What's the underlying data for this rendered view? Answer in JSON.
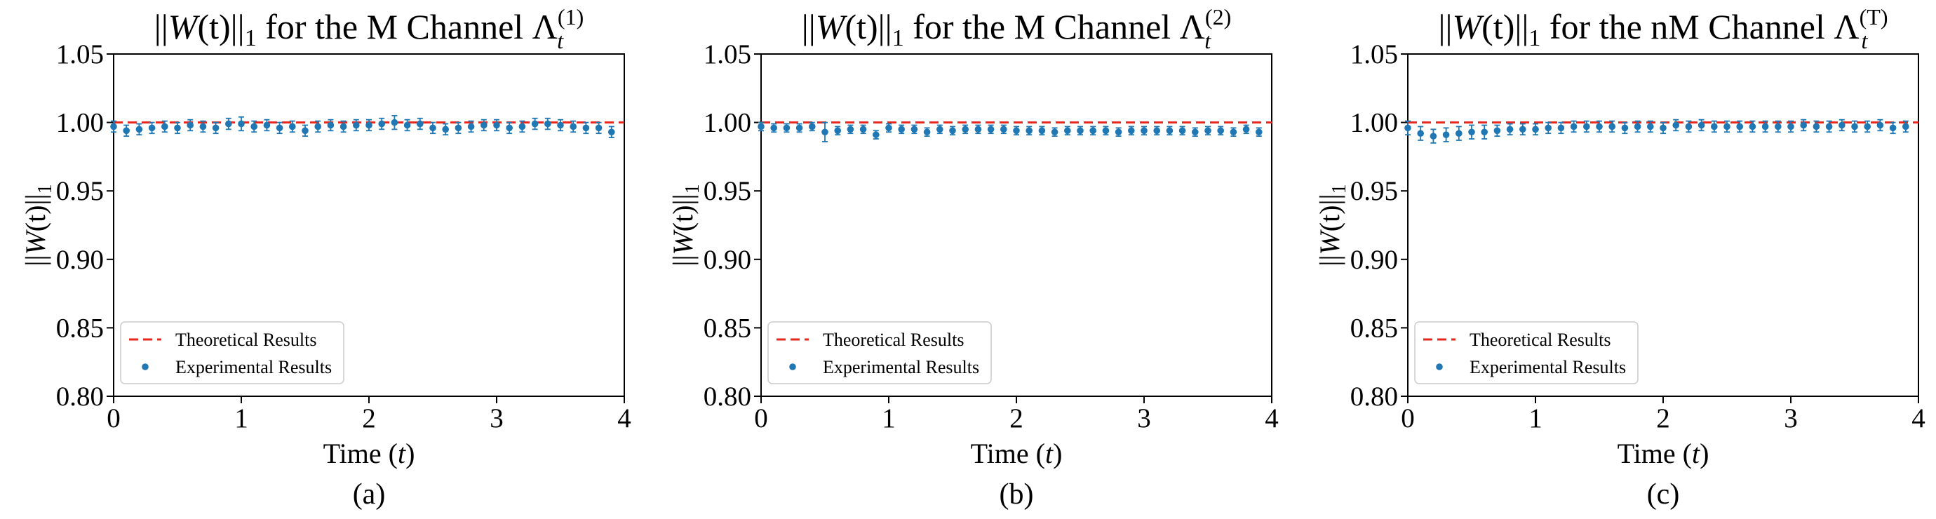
{
  "colors": {
    "theory": "#e8261c",
    "experiment": "#1f77b4",
    "axis": "#000000",
    "legend_border": "#cccccc"
  },
  "common": {
    "xlabel_prefix": "Time (",
    "xlabel_var": "t",
    "xlabel_suffix": ")",
    "ylabel_norm": "||",
    "ylabel_var": "W",
    "ylabel_mid": "(t)||",
    "ylabel_sub": "1",
    "legend_theory": "Theoretical Results",
    "legend_experiment": "Experimental Results",
    "title_norm_left": "||",
    "title_W": "W",
    "title_t": "(t)",
    "title_norm_right": "||",
    "title_norm_sub": "1",
    "title_lambda": "Λ",
    "title_lambda_sub": "t"
  },
  "chart_data": [
    {
      "type": "scatter",
      "subtitle": "(a)",
      "title_text": " for the M Channel ",
      "title_sup": "(1)",
      "xlim": [
        0,
        4
      ],
      "ylim": [
        0.8,
        1.05
      ],
      "xticks": [
        "0",
        "1",
        "2",
        "3",
        "4"
      ],
      "yticks": [
        "0.80",
        "0.85",
        "0.90",
        "0.95",
        "1.00",
        "1.05"
      ],
      "legend_position": "lower-left",
      "grid": false,
      "theory": {
        "name": "Theoretical Results",
        "y": 1.0
      },
      "x": [
        0.0,
        0.1,
        0.2,
        0.3,
        0.4,
        0.5,
        0.6,
        0.7,
        0.8,
        0.9,
        1.0,
        1.1,
        1.2,
        1.3,
        1.4,
        1.5,
        1.6,
        1.7,
        1.8,
        1.9,
        2.0,
        2.1,
        2.2,
        2.3,
        2.4,
        2.5,
        2.6,
        2.7,
        2.8,
        2.9,
        3.0,
        3.1,
        3.2,
        3.3,
        3.4,
        3.5,
        3.6,
        3.7,
        3.8,
        3.9
      ],
      "y": [
        0.997,
        0.994,
        0.995,
        0.996,
        0.997,
        0.996,
        0.998,
        0.997,
        0.996,
        0.999,
        0.999,
        0.997,
        0.998,
        0.996,
        0.997,
        0.994,
        0.997,
        0.998,
        0.997,
        0.998,
        0.998,
        0.999,
        1.0,
        0.998,
        0.999,
        0.996,
        0.995,
        0.996,
        0.997,
        0.998,
        0.998,
        0.996,
        0.997,
        0.999,
        0.999,
        0.998,
        0.997,
        0.996,
        0.996,
        0.993
      ],
      "err": [
        0.004,
        0.004,
        0.004,
        0.004,
        0.004,
        0.004,
        0.004,
        0.004,
        0.004,
        0.004,
        0.005,
        0.004,
        0.004,
        0.004,
        0.004,
        0.004,
        0.004,
        0.004,
        0.004,
        0.004,
        0.004,
        0.004,
        0.005,
        0.004,
        0.004,
        0.004,
        0.004,
        0.004,
        0.004,
        0.004,
        0.004,
        0.004,
        0.004,
        0.004,
        0.004,
        0.004,
        0.004,
        0.004,
        0.004,
        0.004
      ]
    },
    {
      "type": "scatter",
      "subtitle": "(b)",
      "title_text": " for the M Channel ",
      "title_sup": "(2)",
      "xlim": [
        0,
        4
      ],
      "ylim": [
        0.8,
        1.05
      ],
      "xticks": [
        "0",
        "1",
        "2",
        "3",
        "4"
      ],
      "yticks": [
        "0.80",
        "0.85",
        "0.90",
        "0.95",
        "1.00",
        "1.05"
      ],
      "legend_position": "lower-left",
      "grid": false,
      "theory": {
        "name": "Theoretical Results",
        "y": 1.0
      },
      "x": [
        0.0,
        0.1,
        0.2,
        0.3,
        0.4,
        0.5,
        0.6,
        0.7,
        0.8,
        0.9,
        1.0,
        1.1,
        1.2,
        1.3,
        1.4,
        1.5,
        1.6,
        1.7,
        1.8,
        1.9,
        2.0,
        2.1,
        2.2,
        2.3,
        2.4,
        2.5,
        2.6,
        2.7,
        2.8,
        2.9,
        3.0,
        3.1,
        3.2,
        3.3,
        3.4,
        3.5,
        3.6,
        3.7,
        3.8,
        3.9
      ],
      "y": [
        0.997,
        0.996,
        0.996,
        0.996,
        0.997,
        0.993,
        0.994,
        0.995,
        0.995,
        0.991,
        0.996,
        0.995,
        0.995,
        0.993,
        0.995,
        0.994,
        0.995,
        0.995,
        0.995,
        0.995,
        0.994,
        0.994,
        0.994,
        0.993,
        0.994,
        0.994,
        0.994,
        0.994,
        0.993,
        0.994,
        0.994,
        0.994,
        0.994,
        0.994,
        0.993,
        0.994,
        0.994,
        0.993,
        0.995,
        0.993
      ],
      "err": [
        0.003,
        0.003,
        0.003,
        0.003,
        0.003,
        0.007,
        0.003,
        0.003,
        0.003,
        0.003,
        0.003,
        0.003,
        0.003,
        0.003,
        0.003,
        0.003,
        0.003,
        0.003,
        0.003,
        0.003,
        0.003,
        0.003,
        0.003,
        0.003,
        0.003,
        0.003,
        0.003,
        0.003,
        0.003,
        0.003,
        0.003,
        0.003,
        0.003,
        0.003,
        0.003,
        0.003,
        0.003,
        0.003,
        0.003,
        0.003
      ]
    },
    {
      "type": "scatter",
      "subtitle": "(c)",
      "title_text": " for the nM Channel ",
      "title_sup": "(T)",
      "xlim": [
        0,
        4
      ],
      "ylim": [
        0.8,
        1.05
      ],
      "xticks": [
        "0",
        "1",
        "2",
        "3",
        "4"
      ],
      "yticks": [
        "0.80",
        "0.85",
        "0.90",
        "0.95",
        "1.00",
        "1.05"
      ],
      "legend_position": "lower-left",
      "grid": false,
      "theory": {
        "name": "Theoretical Results",
        "y": 1.0
      },
      "x": [
        0.0,
        0.1,
        0.2,
        0.3,
        0.4,
        0.5,
        0.6,
        0.7,
        0.8,
        0.9,
        1.0,
        1.1,
        1.2,
        1.3,
        1.4,
        1.5,
        1.6,
        1.7,
        1.8,
        1.9,
        2.0,
        2.1,
        2.2,
        2.3,
        2.4,
        2.5,
        2.6,
        2.7,
        2.8,
        2.9,
        3.0,
        3.1,
        3.2,
        3.3,
        3.4,
        3.5,
        3.6,
        3.7,
        3.8,
        3.9
      ],
      "y": [
        0.996,
        0.992,
        0.99,
        0.991,
        0.992,
        0.993,
        0.993,
        0.994,
        0.995,
        0.995,
        0.995,
        0.996,
        0.996,
        0.997,
        0.997,
        0.997,
        0.997,
        0.996,
        0.997,
        0.997,
        0.996,
        0.998,
        0.997,
        0.998,
        0.997,
        0.997,
        0.997,
        0.997,
        0.997,
        0.997,
        0.997,
        0.998,
        0.997,
        0.997,
        0.998,
        0.997,
        0.997,
        0.998,
        0.996,
        0.997
      ],
      "err": [
        0.005,
        0.005,
        0.005,
        0.005,
        0.005,
        0.005,
        0.005,
        0.004,
        0.004,
        0.004,
        0.004,
        0.004,
        0.004,
        0.004,
        0.004,
        0.004,
        0.004,
        0.004,
        0.004,
        0.004,
        0.004,
        0.004,
        0.004,
        0.004,
        0.004,
        0.004,
        0.004,
        0.004,
        0.004,
        0.004,
        0.004,
        0.004,
        0.004,
        0.004,
        0.004,
        0.004,
        0.004,
        0.004,
        0.004,
        0.004
      ]
    }
  ]
}
